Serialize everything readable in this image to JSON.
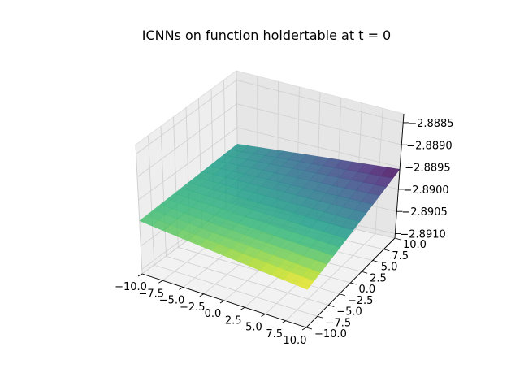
{
  "chart_data": {
    "type": "surface3d",
    "title": "ICNNs on function holdertable at t = 0",
    "xlabel": "",
    "ylabel": "",
    "zlabel": "",
    "x_ticks": [
      "−10.0",
      "−7.5",
      "−5.0",
      "−2.5",
      "0.0",
      "2.5",
      "5.0",
      "7.5",
      "10.0"
    ],
    "y_ticks": [
      "−10.0",
      "−7.5",
      "−5.0",
      "−2.5",
      "0.0",
      "2.5",
      "5.0",
      "7.5",
      "10.0"
    ],
    "z_ticks": [
      "−2.8885",
      "−2.8890",
      "−2.8895",
      "−2.8900",
      "−2.8905",
      "−2.8910"
    ],
    "xlim": [
      -10,
      10
    ],
    "ylim": [
      -10,
      10
    ],
    "zlim": [
      -2.8911,
      -2.8883
    ],
    "grid": true,
    "colormap": "viridis",
    "surface_corners": [
      {
        "x": -10,
        "y": -10,
        "z": -2.88995
      },
      {
        "x": 10,
        "y": -10,
        "z": -2.89012
      },
      {
        "x": 10,
        "y": 10,
        "z": -2.88955
      },
      {
        "x": -10,
        "y": 10,
        "z": -2.88985
      }
    ]
  }
}
